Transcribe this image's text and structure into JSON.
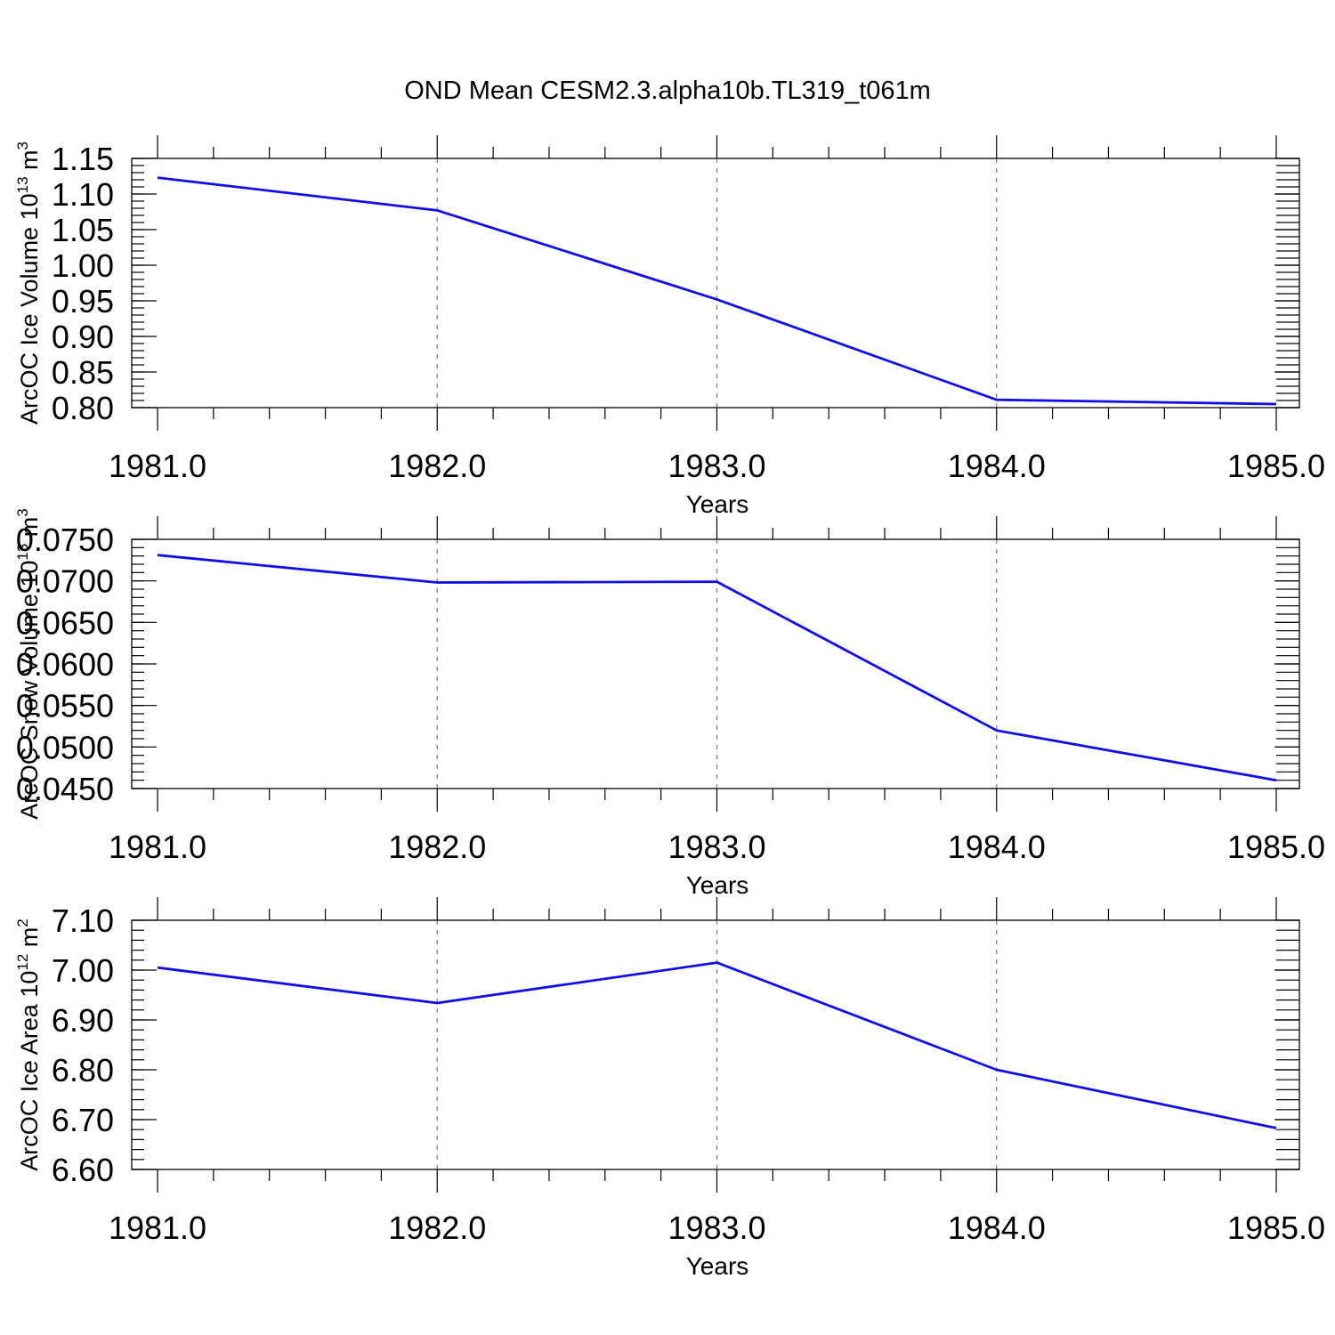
{
  "title": "OND Mean CESM2.3.alpha10b.TL319_t061m",
  "colors": {
    "line": "#1010e6",
    "grid": "#777777",
    "frame": "#000000"
  },
  "chart_data": [
    {
      "type": "line",
      "title": "OND Mean CESM2.3.alpha10b.TL319_t061m",
      "xlabel": "Years",
      "ylabel": "ArcOC Ice Volume 10",
      "ylabel_exp": "13",
      "ylabel_unit": " m",
      "ylabel_unit_exp": "3",
      "x": [
        1981,
        1982,
        1983,
        1984,
        1985
      ],
      "values": [
        1.123,
        1.077,
        0.952,
        0.811,
        0.805
      ],
      "xlim": [
        1981,
        1985
      ],
      "ylim": [
        0.8,
        1.15
      ],
      "yticks": [
        0.8,
        0.85,
        0.9,
        0.95,
        1.0,
        1.05,
        1.1,
        1.15
      ],
      "ytick_labels": [
        "0.80",
        "0.85",
        "0.90",
        "0.95",
        "1.00",
        "1.05",
        "1.10",
        "1.15"
      ],
      "xticks": [
        1981,
        1982,
        1983,
        1984,
        1985
      ],
      "xtick_labels": [
        "1981.0",
        "1982.0",
        "1983.0",
        "1984.0",
        "1985.0"
      ],
      "yminor_step": 0.01,
      "grid": "vertical dashed"
    },
    {
      "type": "line",
      "xlabel": "Years",
      "ylabel": "ArcOC Snow Volume 10",
      "ylabel_exp": "13",
      "ylabel_unit": " m",
      "ylabel_unit_exp": "3",
      "x": [
        1981,
        1982,
        1983,
        1984,
        1985
      ],
      "values": [
        0.0731,
        0.0698,
        0.0699,
        0.052,
        0.046
      ],
      "xlim": [
        1981,
        1985
      ],
      "ylim": [
        0.045,
        0.075
      ],
      "yticks": [
        0.045,
        0.05,
        0.055,
        0.06,
        0.065,
        0.07,
        0.075
      ],
      "ytick_labels": [
        "0.0450",
        "0.0500",
        "0.0550",
        "0.0600",
        "0.0650",
        "0.0700",
        "0.0750"
      ],
      "xticks": [
        1981,
        1982,
        1983,
        1984,
        1985
      ],
      "xtick_labels": [
        "1981.0",
        "1982.0",
        "1983.0",
        "1984.0",
        "1985.0"
      ],
      "yminor_step": 0.001,
      "grid": "vertical dashed"
    },
    {
      "type": "line",
      "xlabel": "Years",
      "ylabel": "ArcOC Ice Area 10",
      "ylabel_exp": "12",
      "ylabel_unit": " m",
      "ylabel_unit_exp": "2",
      "x": [
        1981,
        1982,
        1983,
        1984,
        1985
      ],
      "values": [
        7.005,
        6.934,
        7.015,
        6.8,
        6.683
      ],
      "xlim": [
        1981,
        1985
      ],
      "ylim": [
        6.6,
        7.1
      ],
      "yticks": [
        6.6,
        6.7,
        6.8,
        6.9,
        7.0,
        7.1
      ],
      "ytick_labels": [
        "6.60",
        "6.70",
        "6.80",
        "6.90",
        "7.00",
        "7.10"
      ],
      "xticks": [
        1981,
        1982,
        1983,
        1984,
        1985
      ],
      "xtick_labels": [
        "1981.0",
        "1982.0",
        "1983.0",
        "1984.0",
        "1985.0"
      ],
      "yminor_step": 0.02,
      "grid": "vertical dashed"
    }
  ]
}
